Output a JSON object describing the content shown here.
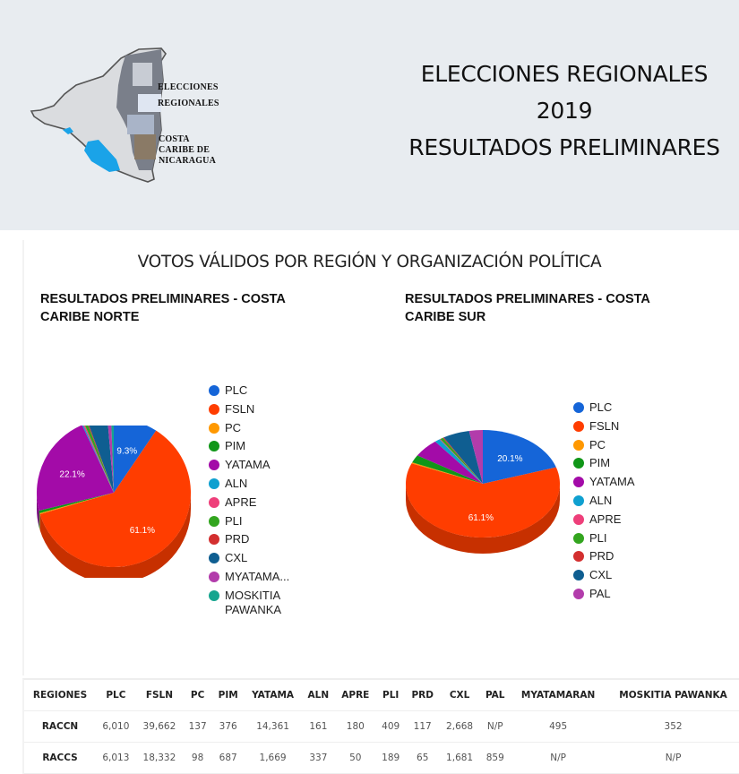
{
  "header": {
    "logo": {
      "line1": "ELECCIONES",
      "line2": "REGIONALES",
      "line3": "COSTA",
      "line4": "CARIBE DE",
      "line5": "NICARAGUA"
    },
    "title_line1": "ELECCIONES REGIONALES",
    "title_line2": "2019",
    "title_line3": "RESULTADOS PRELIMINARES",
    "background": "#e8ecf0"
  },
  "section": {
    "title": "VOTOS VÁLIDOS POR REGIÓN Y ORGANIZACIÓN POLÍTICA"
  },
  "colors": {
    "PLC": "#1565d8",
    "FSLN": "#ff3d00",
    "PC": "#ff9800",
    "PIM": "#109618",
    "YATAMA": "#a30ba8",
    "ALN": "#0fa0d0",
    "APRE": "#ee3f7a",
    "PLI": "#33a51f",
    "PRD": "#d32f2f",
    "CXL": "#0f5e91",
    "MYATAMARAN": "#b23cab",
    "PAL": "#b23cab",
    "MOSKITIA PAWANKA": "#16a58f"
  },
  "chart_data": [
    {
      "type": "pie",
      "title": "RESULTADOS PRELIMINARES - COSTA CARIBE NORTE",
      "title_line1": "RESULTADOS PRELIMINARES - COSTA",
      "title_line2": "CARIBE NORTE",
      "legend_position": "right",
      "categories": [
        "PLC",
        "FSLN",
        "PC",
        "PIM",
        "YATAMA",
        "ALN",
        "APRE",
        "PLI",
        "PRD",
        "CXL",
        "MYATAMARAN",
        "MOSKITIA PAWANKA"
      ],
      "legend_labels": [
        "PLC",
        "FSLN",
        "PC",
        "PIM",
        "YATAMA",
        "ALN",
        "APRE",
        "PLI",
        "PRD",
        "CXL",
        "MYATAMA...",
        "MOSKITIA PAWANKA"
      ],
      "values": [
        6010,
        39662,
        137,
        376,
        14361,
        161,
        180,
        409,
        117,
        2668,
        495,
        352
      ],
      "slice_labels": {
        "PLC": "9.3%",
        "FSLN": "61.1%",
        "YATAMA": "22.1%"
      }
    },
    {
      "type": "pie",
      "title": "RESULTADOS PRELIMINARES - COSTA CARIBE SUR",
      "title_line1": "RESULTADOS PRELIMINARES - COSTA",
      "title_line2": "CARIBE SUR",
      "legend_position": "right",
      "categories": [
        "PLC",
        "FSLN",
        "PC",
        "PIM",
        "YATAMA",
        "ALN",
        "APRE",
        "PLI",
        "PRD",
        "CXL",
        "PAL"
      ],
      "legend_labels": [
        "PLC",
        "FSLN",
        "PC",
        "PIM",
        "YATAMA",
        "ALN",
        "APRE",
        "PLI",
        "PRD",
        "CXL",
        "PAL"
      ],
      "values": [
        6013,
        18332,
        98,
        687,
        1669,
        337,
        50,
        189,
        65,
        1681,
        859
      ],
      "slice_labels": {
        "PLC": "20.1%",
        "FSLN": "61.1%"
      }
    },
    {
      "type": "table",
      "columns": [
        "REGIONES",
        "PLC",
        "FSLN",
        "PC",
        "PIM",
        "YATAMA",
        "ALN",
        "APRE",
        "PLI",
        "PRD",
        "CXL",
        "PAL",
        "MYATAMARAN",
        "MOSKITIA PAWANKA"
      ],
      "rows": [
        [
          "RACCN",
          "6,010",
          "39,662",
          "137",
          "376",
          "14,361",
          "161",
          "180",
          "409",
          "117",
          "2,668",
          "N/P",
          "495",
          "352"
        ],
        [
          "RACCS",
          "6,013",
          "18,332",
          "98",
          "687",
          "1,669",
          "337",
          "50",
          "189",
          "65",
          "1,681",
          "859",
          "N/P",
          "N/P"
        ]
      ]
    }
  ],
  "table": {
    "columns": [
      "REGIONES",
      "PLC",
      "FSLN",
      "PC",
      "PIM",
      "YATAMA",
      "ALN",
      "APRE",
      "PLI",
      "PRD",
      "CXL",
      "PAL",
      "MYATAMARAN",
      "MOSKITIA PAWANKA"
    ],
    "rows": [
      [
        "RACCN",
        "6,010",
        "39,662",
        "137",
        "376",
        "14,361",
        "161",
        "180",
        "409",
        "117",
        "2,668",
        "N/P",
        "495",
        "352"
      ],
      [
        "RACCS",
        "6,013",
        "18,332",
        "98",
        "687",
        "1,669",
        "337",
        "50",
        "189",
        "65",
        "1,681",
        "859",
        "N/P",
        "N/P"
      ]
    ]
  }
}
